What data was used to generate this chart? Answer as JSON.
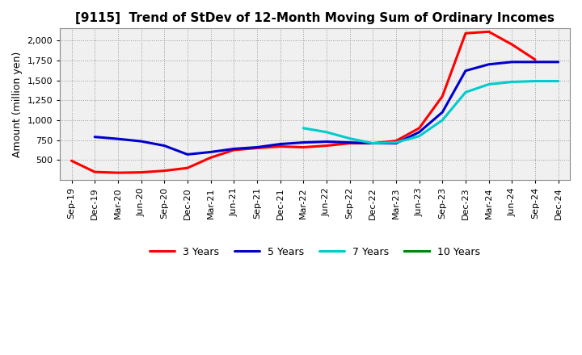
{
  "title": "[9115]  Trend of StDev of 12-Month Moving Sum of Ordinary Incomes",
  "ylabel": "Amount (million yen)",
  "background_color": "#ffffff",
  "plot_bg_color": "#f0f0f0",
  "grid_color": "#999999",
  "title_fontsize": 11,
  "axis_label_fontsize": 9,
  "tick_fontsize": 8,
  "legend_fontsize": 9,
  "x_labels": [
    "Sep-19",
    "Dec-19",
    "Mar-20",
    "Jun-20",
    "Sep-20",
    "Dec-20",
    "Mar-21",
    "Jun-21",
    "Sep-21",
    "Dec-21",
    "Mar-22",
    "Jun-22",
    "Sep-22",
    "Dec-22",
    "Mar-23",
    "Jun-23",
    "Sep-23",
    "Dec-23",
    "Mar-24",
    "Jun-24",
    "Sep-24",
    "Dec-24"
  ],
  "series_order": [
    "3 Years",
    "5 Years",
    "7 Years",
    "10 Years"
  ],
  "series": {
    "3 Years": {
      "color": "#ff0000",
      "data_x": [
        "Sep-19",
        "Dec-19",
        "Mar-20",
        "Jun-20",
        "Sep-20",
        "Dec-20",
        "Mar-21",
        "Jun-21",
        "Sep-21",
        "Dec-21",
        "Mar-22",
        "Jun-22",
        "Sep-22",
        "Dec-22",
        "Mar-23",
        "Jun-23",
        "Sep-23",
        "Dec-23",
        "Mar-24",
        "Jun-24",
        "Sep-24"
      ],
      "data_y": [
        490,
        350,
        340,
        345,
        365,
        400,
        530,
        625,
        650,
        670,
        660,
        680,
        710,
        710,
        740,
        900,
        1300,
        2090,
        2110,
        1950,
        1760
      ]
    },
    "5 Years": {
      "color": "#0000cc",
      "data_x": [
        "Dec-19",
        "Mar-20",
        "Jun-20",
        "Sep-20",
        "Dec-20",
        "Mar-21",
        "Jun-21",
        "Sep-21",
        "Dec-21",
        "Mar-22",
        "Jun-22",
        "Sep-22",
        "Dec-22",
        "Mar-23",
        "Jun-23",
        "Sep-23",
        "Dec-23",
        "Mar-24",
        "Jun-24",
        "Sep-24",
        "Dec-24"
      ],
      "data_y": [
        790,
        765,
        735,
        680,
        570,
        600,
        640,
        660,
        700,
        720,
        730,
        720,
        710,
        710,
        850,
        1100,
        1620,
        1700,
        1730,
        1730,
        1730
      ]
    },
    "7 Years": {
      "color": "#00cccc",
      "data_x": [
        "Mar-22",
        "Jun-22",
        "Sep-22",
        "Dec-22",
        "Mar-23",
        "Jun-23",
        "Sep-23",
        "Dec-23",
        "Mar-24",
        "Jun-24",
        "Sep-24",
        "Dec-24"
      ],
      "data_y": [
        900,
        850,
        770,
        710,
        720,
        800,
        1000,
        1350,
        1450,
        1480,
        1490,
        1490
      ]
    },
    "10 Years": {
      "color": "#008800",
      "data_x": [],
      "data_y": []
    }
  },
  "ylim": [
    250,
    2150
  ],
  "yticks": [
    500,
    750,
    1000,
    1250,
    1500,
    1750,
    2000
  ],
  "line_width": 2.2
}
